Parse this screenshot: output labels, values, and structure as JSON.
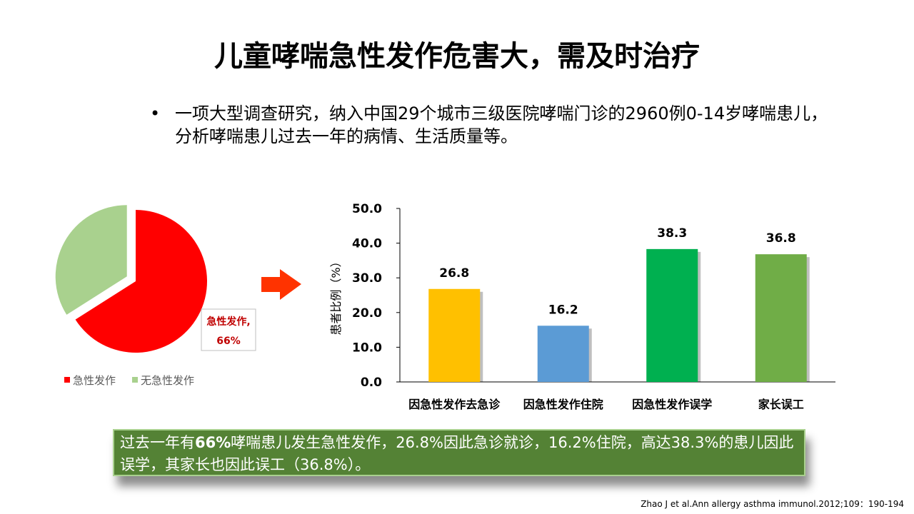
{
  "title": "儿童哮喘急性发作危害大，需及时治疗",
  "bullet": {
    "marker": "•",
    "text": "一项大型调查研究，纳入中国29个城市三级医院哮喘门诊的2960例0-14岁哮喘患儿，分析哮喘患儿过去一年的病情、生活质量等。"
  },
  "summary": {
    "part1": "过去一年有",
    "highlight": "66%",
    "part2": "哮喘患儿发生急性发作，26.8%因此急诊就诊，16.2%住院，高达38.3%的患儿因此误学，其家长也因此误工（36.8%）。"
  },
  "citation": "Zhao J   et al.Ann allergy asthma immunol.2012;109：190-194",
  "chart_data": [
    {
      "type": "pie",
      "slices": [
        {
          "label": "急性发作",
          "value": 66,
          "color": "#ff0000"
        },
        {
          "label": "无急性发作",
          "value": 34,
          "color": "#a9d18e"
        }
      ],
      "data_label": {
        "line1": "急性发作,",
        "line2": "66%"
      },
      "legend": [
        "急性发作",
        "无急性发作"
      ],
      "legend_position": "bottom"
    },
    {
      "type": "bar",
      "categories": [
        "因急性发作去急诊",
        "因急性发作住院",
        "因急性发作误学",
        "家长误工"
      ],
      "values": [
        26.8,
        16.2,
        38.3,
        36.8
      ],
      "labels": [
        "26.8",
        "16.2",
        "38.3",
        "36.8"
      ],
      "colors": [
        "#ffc000",
        "#5b9bd5",
        "#00b050",
        "#70ad47"
      ],
      "ylabel": "患者比例（%）",
      "ylim": [
        0,
        50
      ],
      "yticks": [
        "0.0",
        "10.0",
        "20.0",
        "30.0",
        "40.0",
        "50.0"
      ],
      "grid": false
    }
  ]
}
